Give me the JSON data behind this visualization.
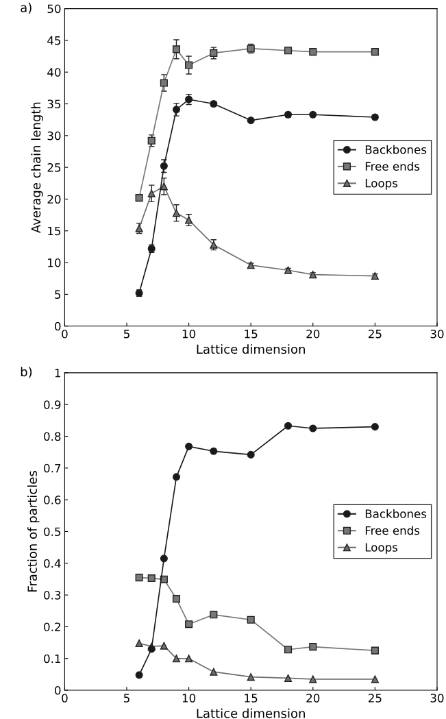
{
  "chart_data": [
    {
      "type": "line",
      "title": "a)",
      "xlabel": "Lattice dimension",
      "ylabel": "Average chain length",
      "x": [
        6,
        7,
        8,
        9,
        10,
        12,
        15,
        18,
        20,
        25
      ],
      "xlim": [
        0,
        30
      ],
      "xticks": [
        0,
        5,
        10,
        15,
        20,
        25,
        30
      ],
      "ylim": [
        0,
        50
      ],
      "yticks": [
        0,
        5,
        10,
        15,
        20,
        25,
        30,
        35,
        40,
        45,
        50
      ],
      "legend": "right",
      "grid": false,
      "series": [
        {
          "name": "Backbones",
          "color": "#1a1a1a",
          "marker": "circle",
          "values": [
            5.2,
            12.2,
            25.2,
            34.1,
            35.7,
            35.0,
            32.4,
            33.3,
            33.3,
            32.9
          ],
          "errors": [
            0.5,
            0.6,
            1.0,
            1.0,
            0.8,
            0.4,
            0.3,
            0.4,
            0.3,
            0.3
          ]
        },
        {
          "name": "Free ends",
          "color": "#777777",
          "marker": "square",
          "values": [
            20.2,
            29.2,
            38.3,
            43.6,
            41.1,
            43.0,
            43.7,
            43.4,
            43.2,
            43.2
          ],
          "errors": [
            0.5,
            0.9,
            1.3,
            1.5,
            1.4,
            0.9,
            0.7,
            0.5,
            0.3,
            0.3
          ]
        },
        {
          "name": "Loops",
          "color": "#6e6e6e",
          "marker": "triangle",
          "values": [
            15.4,
            20.9,
            22.0,
            17.8,
            16.7,
            12.8,
            9.6,
            8.8,
            8.1,
            7.9
          ],
          "errors": [
            0.8,
            1.3,
            1.3,
            1.3,
            0.9,
            0.8,
            0.3,
            0.3,
            0.3,
            0.3
          ]
        }
      ]
    },
    {
      "type": "line",
      "title": "b)",
      "xlabel": "Lattice dimension",
      "ylabel": "Fraction of particles",
      "x": [
        6,
        7,
        8,
        9,
        10,
        12,
        15,
        18,
        20,
        25
      ],
      "xlim": [
        0,
        30
      ],
      "xticks": [
        0,
        5,
        10,
        15,
        20,
        25,
        30
      ],
      "ylim": [
        0,
        1
      ],
      "yticks": [
        0,
        0.1,
        0.2,
        0.3,
        0.4,
        0.5,
        0.6,
        0.7,
        0.8,
        0.9,
        1
      ],
      "legend": "right",
      "grid": false,
      "series": [
        {
          "name": "Backbones",
          "color": "#1a1a1a",
          "marker": "circle",
          "values": [
            0.048,
            0.13,
            0.415,
            0.672,
            0.768,
            0.753,
            0.742,
            0.833,
            0.825,
            0.83
          ]
        },
        {
          "name": "Free ends",
          "color": "#777777",
          "marker": "square",
          "values": [
            0.355,
            0.353,
            0.349,
            0.288,
            0.208,
            0.238,
            0.222,
            0.128,
            0.137,
            0.125
          ]
        },
        {
          "name": "Loops",
          "color": "#6e6e6e",
          "marker": "triangle",
          "values": [
            0.148,
            0.138,
            0.14,
            0.1,
            0.1,
            0.058,
            0.042,
            0.038,
            0.035,
            0.035
          ]
        }
      ]
    }
  ]
}
